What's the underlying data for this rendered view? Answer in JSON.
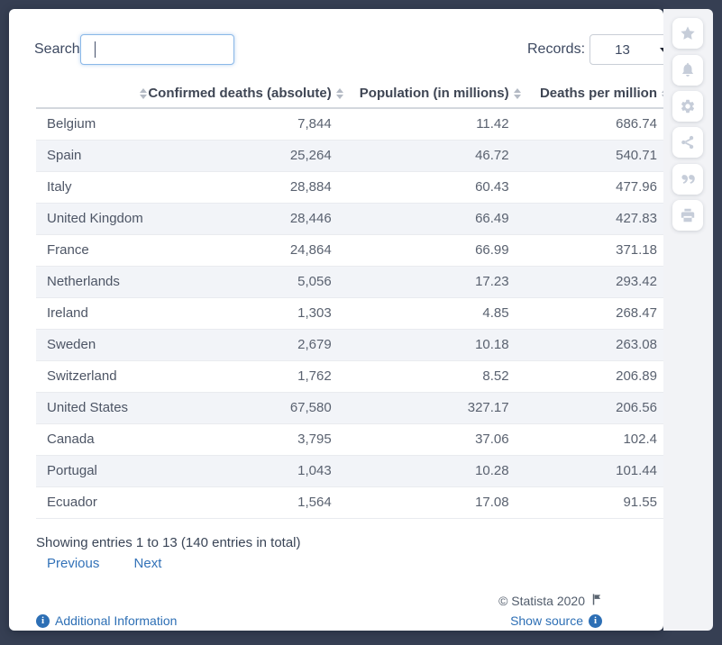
{
  "colors": {
    "page_background": "#363f53",
    "card_background": "#ffffff",
    "stripe_row": "#f2f4f8",
    "link_blue": "#2d6fb5",
    "focused_input_border": "#8ab8e8"
  },
  "controls": {
    "search_label": "Search:",
    "search_value": "",
    "records_label": "Records:",
    "records_value": "13"
  },
  "table": {
    "columns": [
      "",
      "Confirmed deaths (absolute)",
      "Population (in millions)",
      "Deaths per million"
    ],
    "rows": [
      [
        "Belgium",
        "7,844",
        "11.42",
        "686.74"
      ],
      [
        "Spain",
        "25,264",
        "46.72",
        "540.71"
      ],
      [
        "Italy",
        "28,884",
        "60.43",
        "477.96"
      ],
      [
        "United Kingdom",
        "28,446",
        "66.49",
        "427.83"
      ],
      [
        "France",
        "24,864",
        "66.99",
        "371.18"
      ],
      [
        "Netherlands",
        "5,056",
        "17.23",
        "293.42"
      ],
      [
        "Ireland",
        "1,303",
        "4.85",
        "268.47"
      ],
      [
        "Sweden",
        "2,679",
        "10.18",
        "263.08"
      ],
      [
        "Switzerland",
        "1,762",
        "8.52",
        "206.89"
      ],
      [
        "United States",
        "67,580",
        "327.17",
        "206.56"
      ],
      [
        "Canada",
        "3,795",
        "37.06",
        "102.4"
      ],
      [
        "Portugal",
        "1,043",
        "10.28",
        "101.44"
      ],
      [
        "Ecuador",
        "1,564",
        "17.08",
        "91.55"
      ]
    ]
  },
  "pagination": {
    "summary": "Showing entries 1 to 13 (140 entries in total)",
    "previous_label": "Previous",
    "next_label": "Next"
  },
  "footer": {
    "copyright": "© Statista 2020",
    "additional_info_label": "Additional Information",
    "show_source_label": "Show source"
  },
  "toolbar": {
    "icons": [
      "star-icon",
      "bell-icon",
      "gear-icon",
      "share-icon",
      "quote-icon",
      "print-icon"
    ]
  }
}
